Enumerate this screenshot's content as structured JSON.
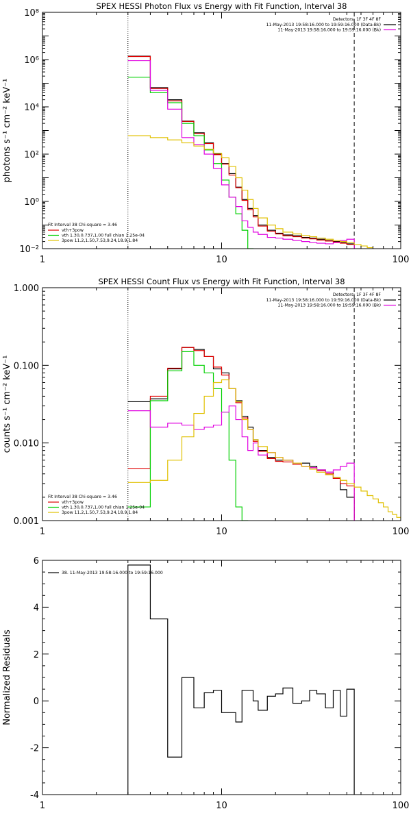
{
  "chart_data": [
    {
      "type": "line",
      "title": "SPEX HESSI Photon Flux vs Energy with Fit Function, Interval 38",
      "xlabel": "",
      "ylabel": "photons s⁻¹ cm⁻² keV⁻¹",
      "xscale": "log",
      "yscale": "log",
      "xlim": [
        1,
        100
      ],
      "ylim": [
        0.01,
        100000000
      ],
      "xticks": [
        {
          "v": 1,
          "label": "1"
        },
        {
          "v": 10,
          "label": "10"
        },
        {
          "v": 100,
          "label": "100"
        }
      ],
      "yticks": [
        {
          "v": 0.01,
          "label": "10⁻²"
        },
        {
          "v": 1,
          "label": "10⁰"
        },
        {
          "v": 100,
          "label": "10²"
        },
        {
          "v": 10000,
          "label": "10⁴"
        },
        {
          "v": 1000000,
          "label": "10⁶"
        },
        {
          "v": 100000000,
          "label": "10⁸"
        }
      ],
      "vlines": [
        {
          "x": 3,
          "style": "dotted"
        },
        {
          "x": 55,
          "style": "dashed"
        }
      ],
      "legend_top_right": {
        "title": "Detectors: 1F 3F 4F 8F",
        "entries": [
          {
            "text": "11-May-2013 19:58:16.000 to 19:59:16.000 (Data-Bk)",
            "color": "#000000"
          },
          {
            "text": "11-May-2013 19:58:16.000 to 19:59:16.000 (Bk)",
            "color": "#e000e0"
          }
        ]
      },
      "legend_bottom_left": {
        "title": "Fit Interval 38   Chi-square = 3.46",
        "entries": [
          {
            "text": "vth+3pow",
            "color": "#e00000"
          },
          {
            "text": "vth 1.30,0.737,1.00   full chian 1.25e-04",
            "color": "#00d000"
          },
          {
            "text": "3pow 11.2,1.50,7.53,9.24,18.9,1.84",
            "color": "#e0c000"
          }
        ]
      },
      "edges": [
        3,
        4,
        5,
        6,
        7,
        8,
        9,
        10,
        11,
        12,
        13,
        14,
        15,
        16,
        18,
        20,
        22,
        25,
        28,
        31,
        34,
        38,
        42,
        46,
        50,
        55
      ],
      "series": [
        {
          "color": "#000000",
          "values": [
            1400000,
            65000,
            20000,
            2500,
            800,
            300,
            100,
            40,
            15,
            4,
            1.2,
            0.5,
            0.25,
            0.1,
            0.06,
            0.045,
            0.038,
            0.035,
            0.03,
            0.028,
            0.025,
            0.022,
            0.02,
            0.018,
            0.016
          ]
        },
        {
          "color": "#e00000",
          "values": [
            1350000,
            60000,
            18000,
            2400,
            750,
            280,
            95,
            38,
            13,
            3.8,
            1.1,
            0.45,
            0.22,
            0.09,
            0.055,
            0.042,
            0.035,
            0.032,
            0.028,
            0.026,
            0.023,
            0.021,
            0.019,
            0.017,
            0.015
          ]
        },
        {
          "color": "#00d000",
          "values": [
            180000,
            40000,
            15000,
            2000,
            600,
            150,
            40,
            8,
            1.5,
            0.3,
            0.06,
            0.01
          ]
        },
        {
          "color": "#e000e0",
          "values": [
            900000,
            50000,
            8000,
            500,
            250,
            100,
            25,
            5,
            1.5,
            0.6,
            0.15,
            0.08,
            0.05,
            0.04,
            0.03,
            0.028,
            0.025,
            0.022,
            0.02,
            0.018,
            0.017,
            0.016,
            0.018,
            0.022,
            0.025
          ]
        },
        {
          "color": "#e0c000",
          "edges": [
            3,
            4,
            5,
            6,
            7,
            8,
            9,
            10,
            11,
            12,
            13,
            14,
            15,
            16,
            18,
            20,
            22,
            25,
            28,
            31,
            34,
            38,
            42,
            46,
            50,
            55,
            60,
            65,
            70
          ],
          "values": [
            600,
            500,
            400,
            300,
            220,
            160,
            110,
            70,
            30,
            10,
            3,
            1.2,
            0.5,
            0.2,
            0.1,
            0.07,
            0.05,
            0.042,
            0.036,
            0.032,
            0.028,
            0.025,
            0.022,
            0.02,
            0.018,
            0.015,
            0.013,
            0.011
          ]
        }
      ]
    },
    {
      "type": "line",
      "title": "SPEX HESSI Count Flux vs Energy with Fit Function, Interval 38",
      "xlabel": "",
      "ylabel": "counts s⁻¹ cm⁻² keV⁻¹",
      "xscale": "log",
      "yscale": "log",
      "xlim": [
        1,
        100
      ],
      "ylim": [
        0.001,
        1
      ],
      "xticks": [
        {
          "v": 1,
          "label": "1"
        },
        {
          "v": 10,
          "label": "10"
        },
        {
          "v": 100,
          "label": "100"
        }
      ],
      "yticks": [
        {
          "v": 0.001,
          "label": "0.001"
        },
        {
          "v": 0.01,
          "label": "0.010"
        },
        {
          "v": 0.1,
          "label": "0.100"
        },
        {
          "v": 1,
          "label": "1.000"
        }
      ],
      "vlines": [
        {
          "x": 3,
          "style": "dotted"
        },
        {
          "x": 55,
          "style": "dashed"
        }
      ],
      "legend_top_right": {
        "title": "Detectors: 1F 3F 4F 8F",
        "entries": [
          {
            "text": "11-May-2013 19:58:16.000 to 19:59:16.000 (Data-Bk)",
            "color": "#000000"
          },
          {
            "text": "11-May-2013 19:58:16.000 to 19:59:16.000 (Bk)",
            "color": "#e000e0"
          }
        ]
      },
      "legend_bottom_left": {
        "title": "Fit Interval 38   Chi-square = 3.46",
        "entries": [
          {
            "text": "vth+3pow",
            "color": "#e00000"
          },
          {
            "text": "vth 1.30,0.737,1.00   full chian 1.25e-04",
            "color": "#00d000"
          },
          {
            "text": "3pow 11.2,1.50,7.53,9.24,18.9,1.84",
            "color": "#e0c000"
          }
        ]
      },
      "edges": [
        3,
        4,
        5,
        6,
        7,
        8,
        9,
        10,
        11,
        12,
        13,
        14,
        15,
        16,
        18,
        20,
        22,
        25,
        28,
        31,
        34,
        38,
        42,
        46,
        50,
        55
      ],
      "series": [
        {
          "color": "#000000",
          "values": [
            0.034,
            0.037,
            0.09,
            0.17,
            0.16,
            0.13,
            0.09,
            0.08,
            0.05,
            0.035,
            0.022,
            0.016,
            0.011,
            0.008,
            0.0065,
            0.006,
            0.006,
            0.0055,
            0.0055,
            0.005,
            0.0045,
            0.0042,
            0.0035,
            0.0025,
            0.002
          ]
        },
        {
          "color": "#e00000",
          "values": [
            0.0047,
            0.04,
            0.092,
            0.17,
            0.155,
            0.13,
            0.095,
            0.075,
            0.05,
            0.033,
            0.021,
            0.015,
            0.0105,
            0.0078,
            0.0063,
            0.0058,
            0.0057,
            0.0053,
            0.005,
            0.0048,
            0.0044,
            0.004,
            0.0035,
            0.003,
            0.0028
          ]
        },
        {
          "color": "#00d000",
          "values": [
            0.0015,
            0.035,
            0.085,
            0.15,
            0.1,
            0.08,
            0.05,
            0.025,
            0.006,
            0.0015,
            0.001
          ]
        },
        {
          "color": "#e000e0",
          "values": [
            0.026,
            0.016,
            0.018,
            0.017,
            0.015,
            0.016,
            0.017,
            0.025,
            0.03,
            0.02,
            0.012,
            0.008,
            0.01,
            0.007,
            0.0075,
            0.0065,
            0.006,
            0.0055,
            0.005,
            0.0048,
            0.0045,
            0.0042,
            0.0045,
            0.005,
            0.0055
          ]
        },
        {
          "color": "#e0c000",
          "edges": [
            3,
            4,
            5,
            6,
            7,
            8,
            9,
            10,
            11,
            12,
            13,
            14,
            15,
            16,
            18,
            20,
            22,
            25,
            28,
            31,
            34,
            38,
            42,
            46,
            50,
            55,
            60,
            65,
            70,
            75,
            80,
            85,
            90,
            95,
            100
          ],
          "values": [
            0.0031,
            0.0033,
            0.006,
            0.012,
            0.024,
            0.04,
            0.06,
            0.065,
            0.05,
            0.034,
            0.02,
            0.015,
            0.011,
            0.009,
            0.0075,
            0.0065,
            0.006,
            0.0055,
            0.005,
            0.0046,
            0.0042,
            0.0039,
            0.0036,
            0.0033,
            0.003,
            0.0027,
            0.0024,
            0.0021,
            0.0019,
            0.0017,
            0.0015,
            0.0013,
            0.0012,
            0.0011
          ]
        }
      ]
    },
    {
      "type": "line",
      "title": "",
      "xlabel": "",
      "ylabel": "Normalized Residuals",
      "xscale": "log",
      "yscale": "linear",
      "xlim": [
        1,
        100
      ],
      "ylim": [
        -4,
        6
      ],
      "xticks": [
        {
          "v": 1,
          "label": "1"
        },
        {
          "v": 10,
          "label": "10"
        },
        {
          "v": 100,
          "label": "100"
        }
      ],
      "yticks": [
        {
          "v": -4,
          "label": "-4"
        },
        {
          "v": -2,
          "label": "-2"
        },
        {
          "v": 0,
          "label": "0"
        },
        {
          "v": 2,
          "label": "2"
        },
        {
          "v": 4,
          "label": "4"
        },
        {
          "v": 6,
          "label": "6"
        }
      ],
      "vlines": [],
      "legend_top_left": {
        "entries": [
          {
            "text": "38. 11-May-2013 19:58:16.000 to 19:59:16.000",
            "color": "#000000"
          }
        ]
      },
      "edges": [
        3,
        4,
        5,
        6,
        7,
        8,
        9,
        10,
        11,
        12,
        13,
        14,
        15,
        16,
        18,
        20,
        22,
        25,
        28,
        31,
        34,
        38,
        42,
        46,
        50,
        55
      ],
      "series": [
        {
          "color": "#000000",
          "values": [
            5.8,
            3.5,
            -2.4,
            1.0,
            -0.3,
            0.35,
            0.45,
            -0.5,
            -0.5,
            -0.9,
            0.45,
            0.45,
            0.0,
            -0.4,
            0.2,
            0.3,
            0.55,
            -0.1,
            0.0,
            0.45,
            0.3,
            -0.3,
            0.45,
            -0.65,
            0.5
          ],
          "drop_to_bottom_ends": true
        }
      ]
    }
  ]
}
